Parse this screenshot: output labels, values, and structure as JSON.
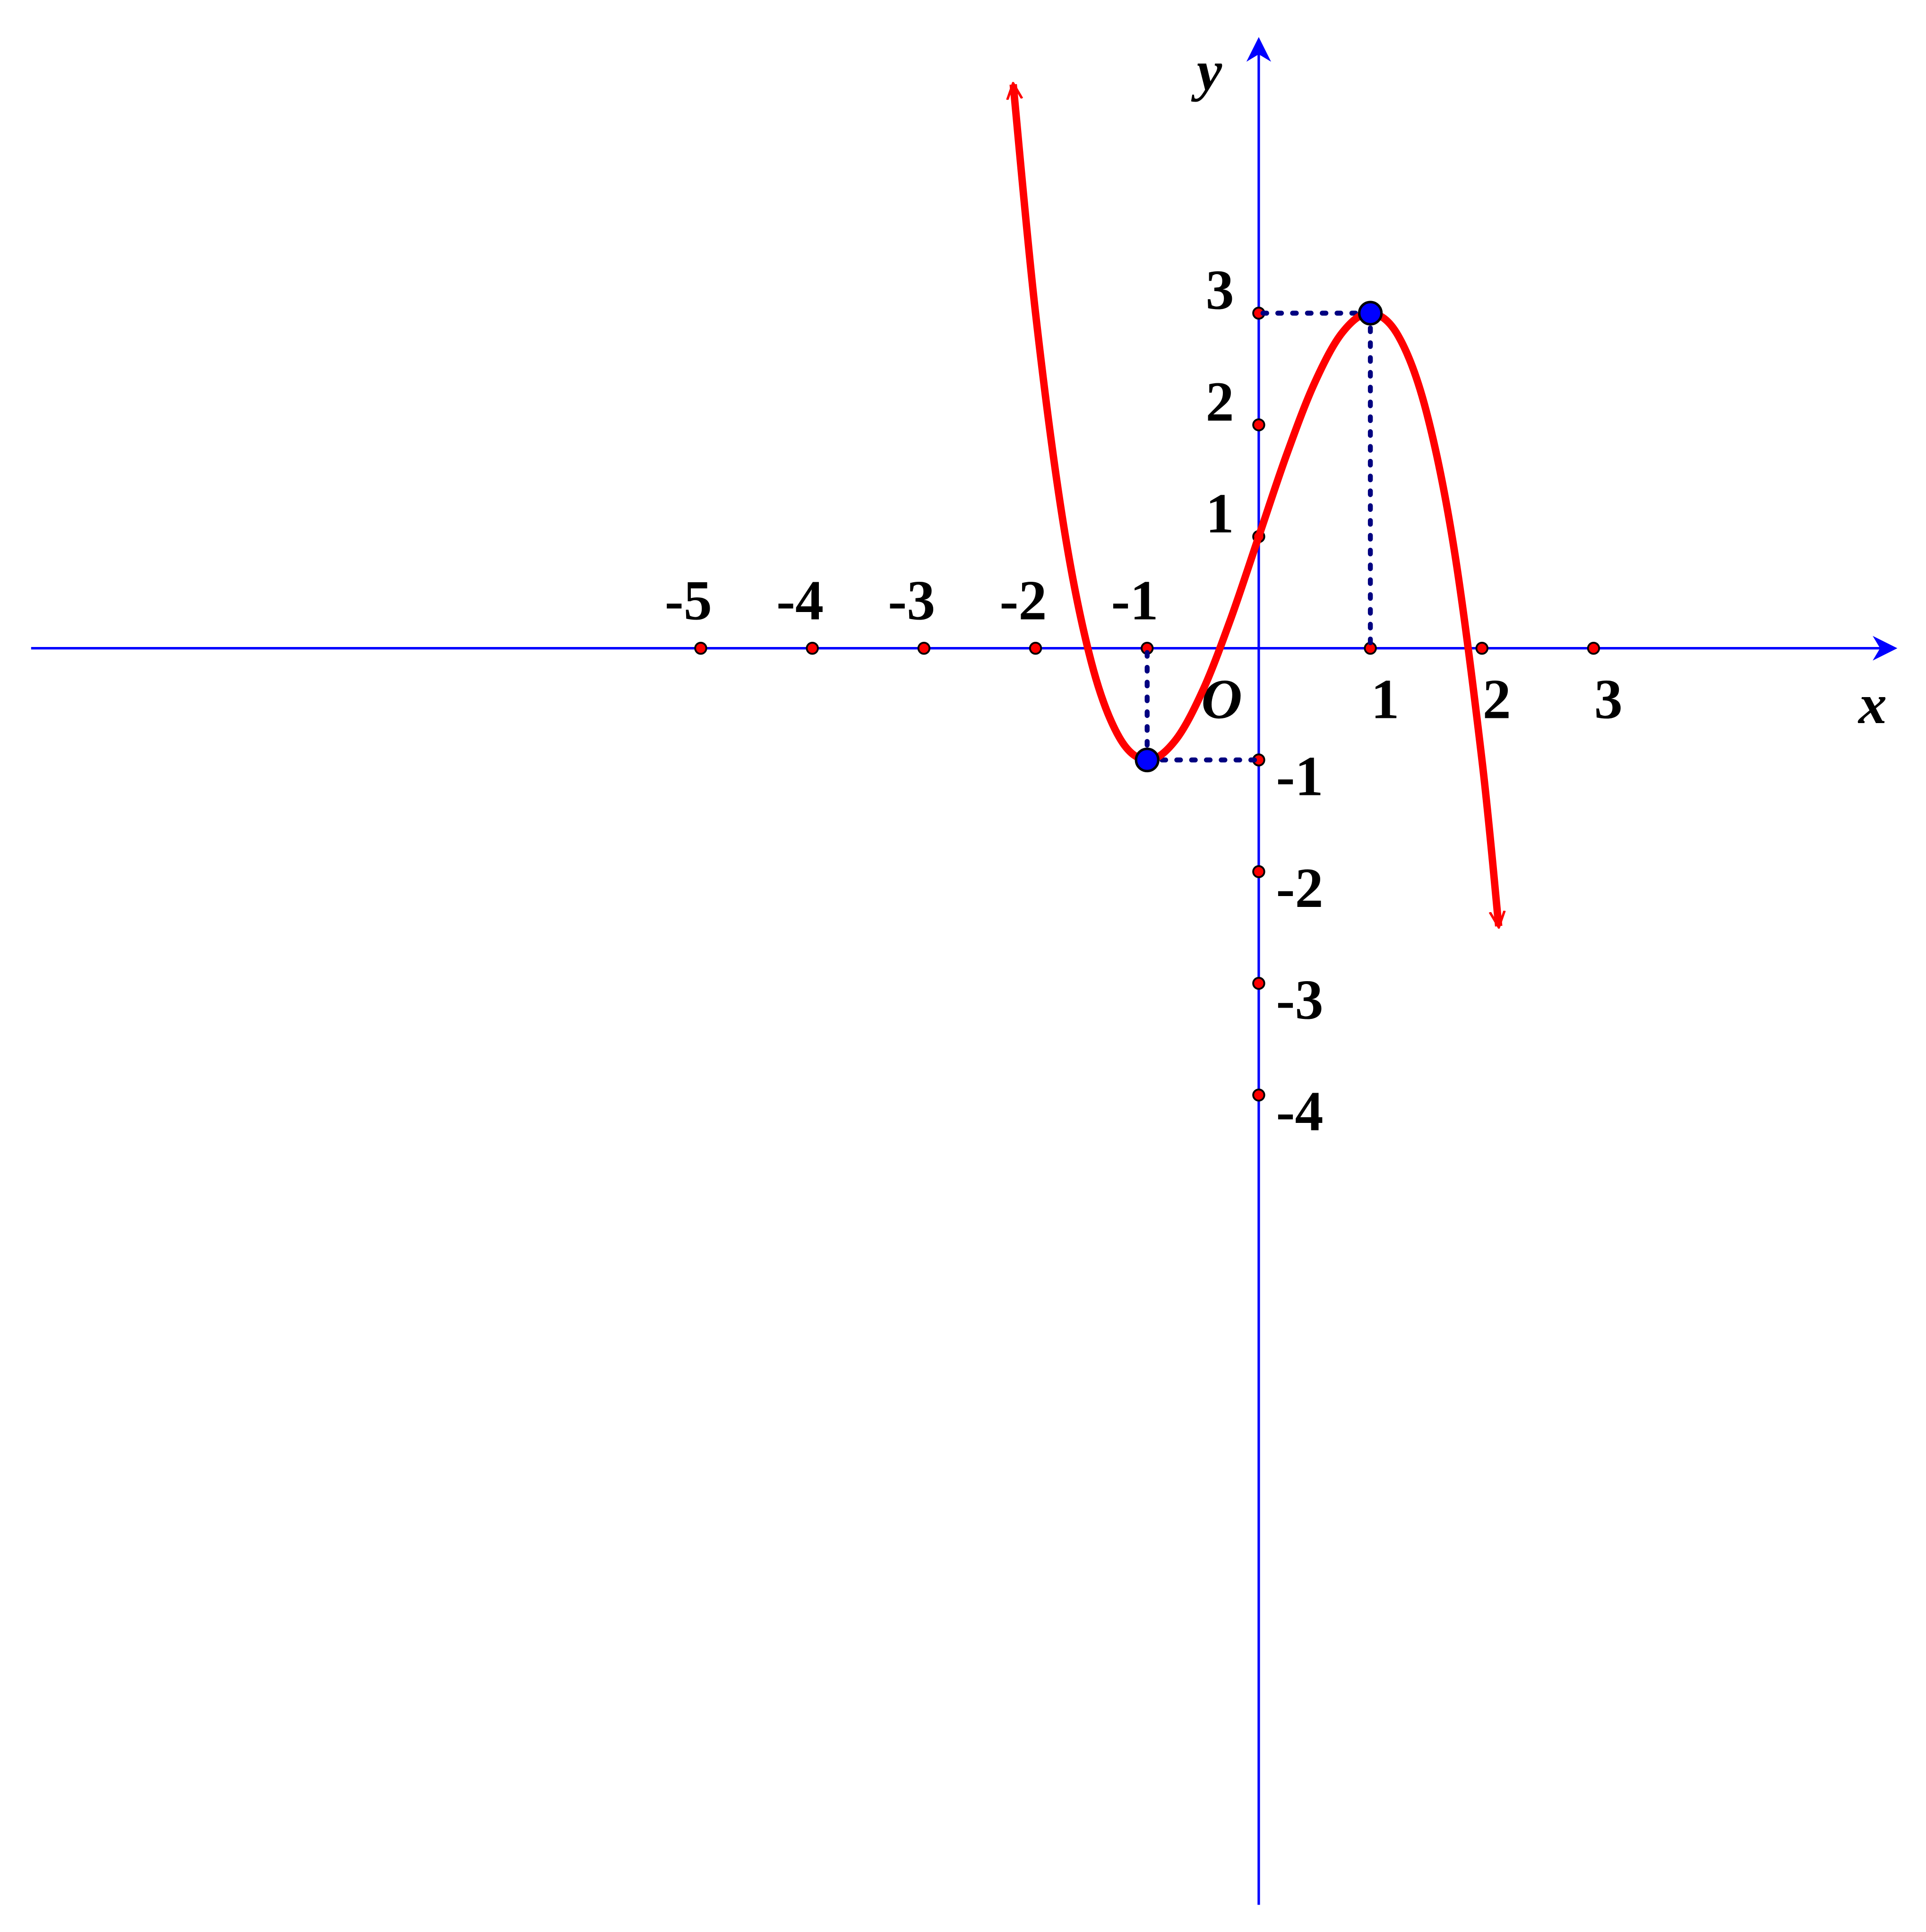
{
  "chart_data": {
    "type": "line",
    "x_label": "x",
    "y_label": "y",
    "origin_label": "O",
    "axis_color": "#0000ff",
    "xlim": [
      -11,
      5.7
    ],
    "ylim": [
      -11.25,
      5.45
    ],
    "xticks": [
      -5,
      -4,
      -3,
      -2,
      -1,
      1,
      2,
      3
    ],
    "yticks": [
      3,
      2,
      1,
      -1,
      -2,
      -3,
      -4
    ],
    "x": [
      -2.2,
      -2,
      -1.75,
      -1.5,
      -1.25,
      -1,
      -0.75,
      -0.5,
      -0.25,
      0,
      0.25,
      0.5,
      0.75,
      1,
      1.25,
      1.5,
      1.75,
      2,
      2.15
    ],
    "series": [
      {
        "color": "#ff0000",
        "values": [
          5.048,
          3,
          1.109,
          -0.125,
          -0.797,
          -1,
          -0.828,
          -0.375,
          0.266,
          1,
          1.734,
          2.375,
          2.828,
          3,
          2.797,
          2.125,
          0.891,
          -1,
          -2.488
        ]
      }
    ],
    "points": [
      {
        "x": 1,
        "y": 3,
        "color": "#0000ff"
      },
      {
        "x": -1,
        "y": -1,
        "color": "#0000ff"
      }
    ]
  }
}
